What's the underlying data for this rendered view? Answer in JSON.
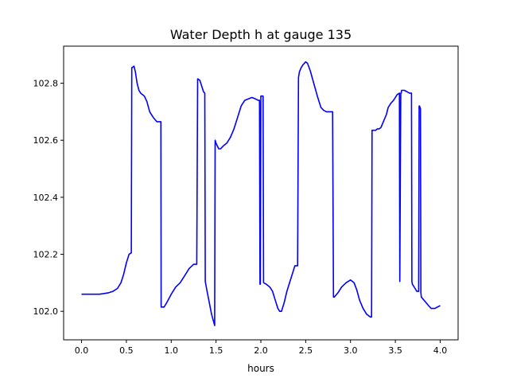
{
  "chart_data": {
    "type": "line",
    "title": "Water Depth h at gauge 135",
    "xlabel": "hours",
    "ylabel": "",
    "xlim": [
      -0.2,
      4.2
    ],
    "ylim": [
      101.9,
      102.93
    ],
    "xticks": [
      0.0,
      0.5,
      1.0,
      1.5,
      2.0,
      2.5,
      3.0,
      3.5,
      4.0
    ],
    "xtick_labels": [
      "0.0",
      "0.5",
      "1.0",
      "1.5",
      "2.0",
      "2.5",
      "3.0",
      "3.5",
      "4.0"
    ],
    "yticks": [
      102.0,
      102.2,
      102.4,
      102.6,
      102.8
    ],
    "ytick_labels": [
      "102.0",
      "102.2",
      "102.4",
      "102.6",
      "102.8"
    ],
    "grid": false,
    "legend": "none",
    "series": [
      {
        "color": "#0000ff",
        "x": [
          0.0,
          0.1,
          0.2,
          0.3,
          0.35,
          0.4,
          0.44,
          0.47,
          0.5,
          0.53,
          0.555,
          0.56,
          0.565,
          0.585,
          0.6,
          0.62,
          0.64,
          0.66,
          0.7,
          0.73,
          0.76,
          0.8,
          0.84,
          0.87,
          0.885,
          0.888,
          0.9,
          0.92,
          0.95,
          1.0,
          1.05,
          1.1,
          1.15,
          1.2,
          1.25,
          1.285,
          1.295,
          1.3,
          1.32,
          1.36,
          1.375,
          1.38,
          1.4,
          1.45,
          1.485,
          1.49,
          1.5,
          1.53,
          1.55,
          1.58,
          1.62,
          1.66,
          1.7,
          1.74,
          1.78,
          1.82,
          1.86,
          1.9,
          1.94,
          1.97,
          1.985,
          1.99,
          1.995,
          2.0,
          2.02,
          2.025,
          2.03,
          2.06,
          2.1,
          2.13,
          2.16,
          2.19,
          2.21,
          2.23,
          2.26,
          2.29,
          2.34,
          2.38,
          2.41,
          2.42,
          2.43,
          2.45,
          2.47,
          2.5,
          2.52,
          2.55,
          2.59,
          2.63,
          2.67,
          2.7,
          2.73,
          2.77,
          2.8,
          2.81,
          2.82,
          2.86,
          2.9,
          2.95,
          3.0,
          3.04,
          3.07,
          3.1,
          3.14,
          3.18,
          3.22,
          3.235,
          3.24,
          3.25,
          3.28,
          3.3,
          3.32,
          3.34,
          3.36,
          3.4,
          3.42,
          3.45,
          3.48,
          3.5,
          3.52,
          3.545,
          3.55,
          3.56,
          3.565,
          3.57,
          3.6,
          3.63,
          3.66,
          3.68,
          3.685,
          3.69,
          3.72,
          3.74,
          3.76,
          3.765,
          3.77,
          3.775,
          3.78,
          3.785,
          3.79,
          3.83,
          3.87,
          3.9,
          3.94,
          3.97,
          4.0
        ],
        "y": [
          102.06,
          102.06,
          102.06,
          102.065,
          102.07,
          102.08,
          102.1,
          102.13,
          102.17,
          102.2,
          102.205,
          102.855,
          102.855,
          102.86,
          102.84,
          102.8,
          102.775,
          102.765,
          102.755,
          102.735,
          102.7,
          102.68,
          102.665,
          102.665,
          102.665,
          102.015,
          102.015,
          102.015,
          102.03,
          102.06,
          102.085,
          102.1,
          102.125,
          102.15,
          102.165,
          102.165,
          102.815,
          102.815,
          102.81,
          102.77,
          102.765,
          102.105,
          102.07,
          101.99,
          101.95,
          102.6,
          102.59,
          102.57,
          102.57,
          102.58,
          102.59,
          102.61,
          102.64,
          102.68,
          102.72,
          102.74,
          102.745,
          102.75,
          102.745,
          102.74,
          102.74,
          102.095,
          102.095,
          102.755,
          102.755,
          102.755,
          102.1,
          102.095,
          102.085,
          102.07,
          102.04,
          102.01,
          102.0,
          102.0,
          102.03,
          102.07,
          102.12,
          102.16,
          102.16,
          102.82,
          102.84,
          102.855,
          102.865,
          102.875,
          102.87,
          102.845,
          102.8,
          102.755,
          102.715,
          102.705,
          102.7,
          102.7,
          102.7,
          102.05,
          102.05,
          102.065,
          102.085,
          102.1,
          102.11,
          102.1,
          102.075,
          102.04,
          102.01,
          101.99,
          101.98,
          101.98,
          102.635,
          102.635,
          102.635,
          102.64,
          102.64,
          102.645,
          102.66,
          102.69,
          102.715,
          102.73,
          102.74,
          102.75,
          102.76,
          102.765,
          102.105,
          102.765,
          102.765,
          102.775,
          102.775,
          102.77,
          102.765,
          102.765,
          102.105,
          102.095,
          102.08,
          102.07,
          102.07,
          102.72,
          102.72,
          102.715,
          102.71,
          102.065,
          102.05,
          102.035,
          102.02,
          102.01,
          102.01,
          102.015,
          102.02
        ]
      }
    ]
  }
}
